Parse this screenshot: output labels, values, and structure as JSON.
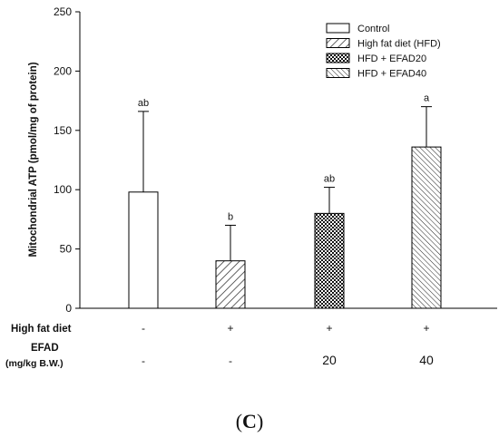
{
  "chart_data": {
    "type": "bar",
    "ylabel": "Mitochondrial ATP (pmol/mg of protein)",
    "ylim": [
      0,
      250
    ],
    "yticks": [
      0,
      50,
      100,
      150,
      200,
      250
    ],
    "grid": false,
    "legend_position": "top-right",
    "series": [
      {
        "name": "Control",
        "pattern": "none",
        "value": 98,
        "error": 68,
        "significance": "ab"
      },
      {
        "name": "High fat diet (HFD)",
        "pattern": "diagonal",
        "value": 40,
        "error": 30,
        "significance": "b"
      },
      {
        "name": "HFD + EFAD20",
        "pattern": "crosshatch",
        "value": 80,
        "error": 22,
        "significance": "ab"
      },
      {
        "name": "HFD + EFAD40",
        "pattern": "diagonal-dense",
        "value": 136,
        "error": 34,
        "significance": "a"
      }
    ],
    "rows": [
      {
        "label": "High fat diet",
        "values": [
          "-",
          "+",
          "+",
          "+"
        ]
      },
      {
        "label_lines": [
          "EFAD",
          "(mg/kg B.W.)"
        ],
        "values": [
          "-",
          "-",
          "20",
          "40"
        ]
      }
    ]
  },
  "panel": {
    "open": "(",
    "letter": "C",
    "close": ")"
  }
}
